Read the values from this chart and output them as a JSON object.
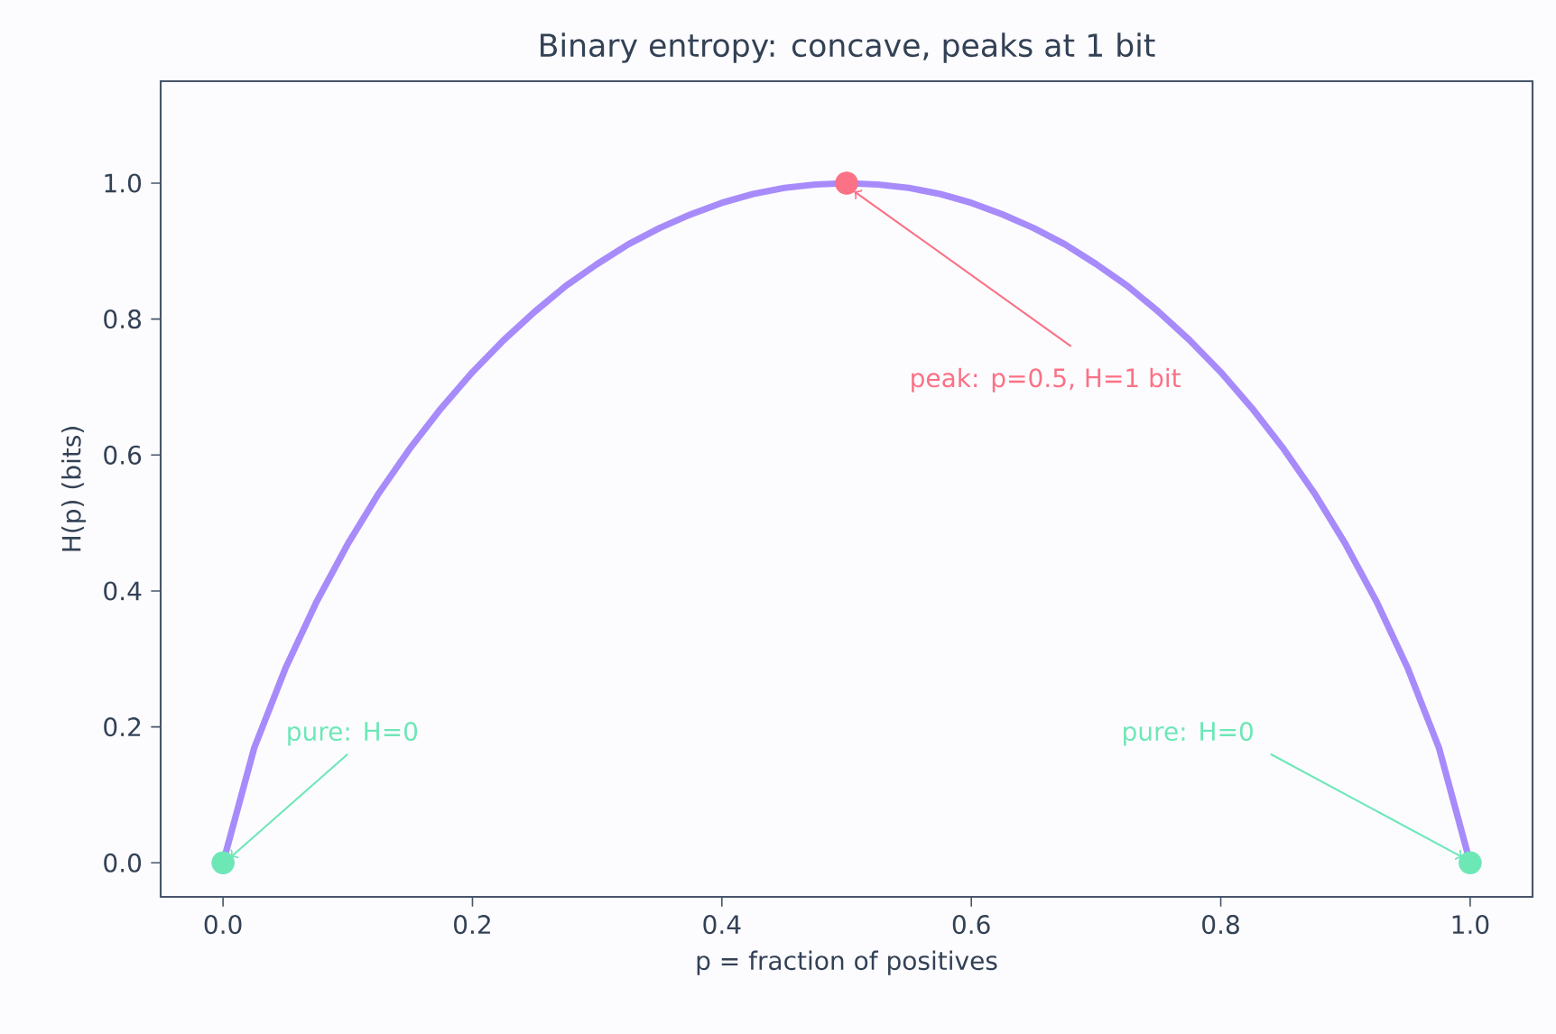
{
  "chart_data": {
    "type": "line",
    "title": "Binary entropy: concave, peaks at 1 bit",
    "xlabel": "p = fraction of positives",
    "ylabel": "H(p)  (bits)",
    "xlim": [
      -0.05,
      1.05
    ],
    "ylim": [
      -0.05,
      1.15
    ],
    "xticks": [
      {
        "value": 0,
        "label": "0.0"
      },
      {
        "value": 0.2,
        "label": "0.2"
      },
      {
        "value": 0.4,
        "label": "0.4"
      },
      {
        "value": 0.6,
        "label": "0.6"
      },
      {
        "value": 0.8,
        "label": "0.8"
      },
      {
        "value": 1,
        "label": "1.0"
      }
    ],
    "yticks": [
      {
        "value": 0,
        "label": "0.0"
      },
      {
        "value": 0.2,
        "label": "0.2"
      },
      {
        "value": 0.4,
        "label": "0.4"
      },
      {
        "value": 0.6,
        "label": "0.6"
      },
      {
        "value": 0.8,
        "label": "0.8"
      },
      {
        "value": 1,
        "label": "1.0"
      }
    ],
    "series": [
      {
        "color": "#a78bfa",
        "x": [
          0,
          0.025,
          0.05,
          0.075,
          0.1,
          0.125,
          0.15,
          0.175,
          0.2,
          0.225,
          0.25,
          0.275,
          0.3,
          0.325,
          0.35,
          0.375,
          0.4,
          0.425,
          0.45,
          0.475,
          0.5,
          0.525,
          0.55,
          0.575,
          0.6,
          0.625,
          0.65,
          0.675,
          0.7,
          0.725,
          0.75,
          0.775,
          0.8,
          0.825,
          0.85,
          0.875,
          0.9,
          0.925,
          0.95,
          0.975,
          1
        ],
        "values": [
          0,
          0.169,
          0.286,
          0.384,
          0.469,
          0.544,
          0.61,
          0.669,
          0.722,
          0.769,
          0.811,
          0.849,
          0.881,
          0.91,
          0.934,
          0.954,
          0.971,
          0.984,
          0.993,
          0.998,
          1,
          0.998,
          0.993,
          0.984,
          0.971,
          0.954,
          0.934,
          0.91,
          0.881,
          0.849,
          0.811,
          0.769,
          0.722,
          0.669,
          0.61,
          0.544,
          0.469,
          0.384,
          0.286,
          0.169,
          0
        ]
      },
      {
        "type": "scatter",
        "color": "#6ee7b7",
        "x": [
          0,
          1
        ],
        "values": [
          0,
          0
        ]
      },
      {
        "type": "scatter",
        "color": "#fb7185",
        "x": [
          0.5
        ],
        "values": [
          1
        ]
      }
    ],
    "annotations": [
      {
        "text": "pure: H=0",
        "x": 0,
        "y": 0
      },
      {
        "text": "pure: H=0",
        "x": 1,
        "y": 0
      },
      {
        "text": "peak: p=0.5, H=1 bit",
        "x": 0.5,
        "y": 1
      }
    ]
  }
}
